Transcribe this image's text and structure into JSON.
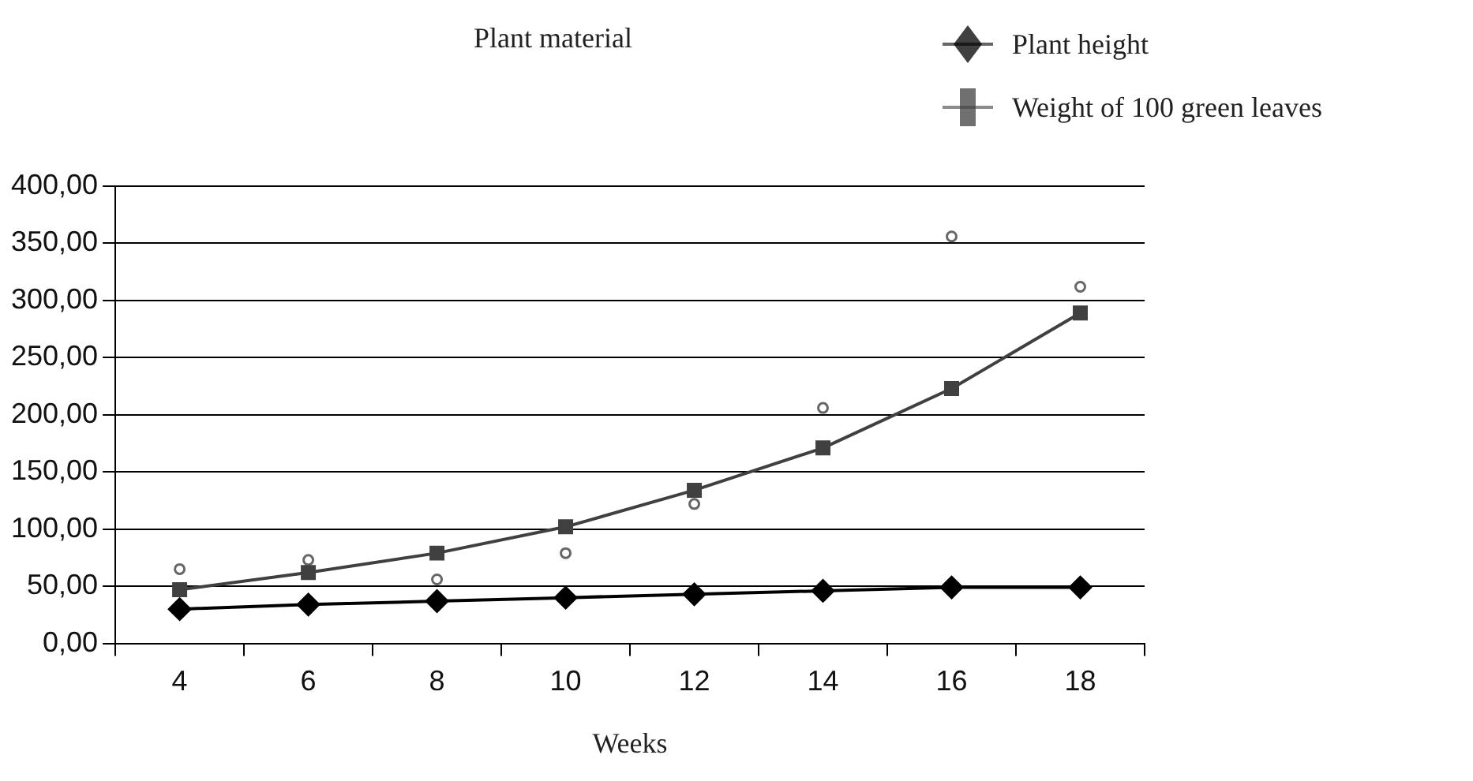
{
  "chart_data": {
    "type": "line",
    "title": "Plant material",
    "xlabel": "Weeks",
    "categories": [
      "4",
      "6",
      "8",
      "10",
      "12",
      "14",
      "16",
      "18"
    ],
    "series": [
      {
        "name": "Plant height",
        "type": "line",
        "color": "#000000",
        "marker": "diamond",
        "values": [
          30,
          34,
          37,
          40,
          43,
          46,
          49,
          49
        ]
      },
      {
        "name": "Weight of 100 green leaves",
        "type": "line",
        "color": "#404040",
        "marker": "square",
        "values": [
          47,
          62,
          79,
          102,
          134,
          171,
          223,
          289
        ]
      },
      {
        "type": "scatter",
        "color": "#666666",
        "marker": "circle",
        "values": [
          65,
          73,
          56,
          79,
          122,
          206,
          356,
          312
        ]
      }
    ],
    "ylim": [
      0,
      400
    ],
    "yticks": [
      {
        "value": 0,
        "label": "0,00"
      },
      {
        "value": 50,
        "label": "50,00"
      },
      {
        "value": 100,
        "label": "100,00"
      },
      {
        "value": 150,
        "label": "150,00"
      },
      {
        "value": 200,
        "label": "200,00"
      },
      {
        "value": 250,
        "label": "250,00"
      },
      {
        "value": 300,
        "label": "300,00"
      },
      {
        "value": 350,
        "label": "350,00"
      },
      {
        "value": 400,
        "label": "400,00"
      }
    ],
    "grid": "y",
    "legend": "top right",
    "line_style": "solid"
  }
}
